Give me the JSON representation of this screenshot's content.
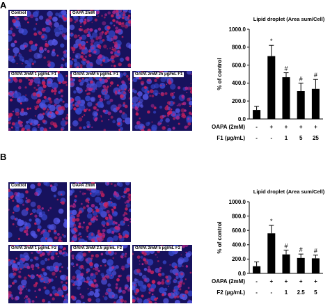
{
  "panels": [
    {
      "letter": "A",
      "images": [
        {
          "label": "Control",
          "red": 0.12
        },
        {
          "label": "OAPA 2mM",
          "red": 0.55
        },
        {
          "label": "OAPA 2mM 1 µg/mL F1",
          "red": 0.42
        },
        {
          "label": "OAPA 2mM 5 µg/mL F1",
          "red": 0.35
        },
        {
          "label": "OAPA 2mM 25 µg/mL F1",
          "red": 0.32
        }
      ],
      "chart_data": {
        "type": "bar",
        "title": "Lipid droplet (Area sum/Cell)",
        "ylabel": "% of control",
        "ylim": [
          0,
          1000
        ],
        "yticks": [
          "0.0",
          "200.0",
          "400.0",
          "600.0",
          "800.0",
          "1000.0"
        ],
        "values": [
          100,
          700,
          465,
          310,
          335
        ],
        "errors": [
          40,
          120,
          50,
          90,
          105
        ],
        "significance": [
          "",
          "*",
          "#",
          "#",
          "#"
        ],
        "rows": [
          {
            "label": "OAPA (2mM)",
            "values": [
              "-",
              "+",
              "+",
              "+",
              "+"
            ]
          },
          {
            "label": "F1 (µg/mL)",
            "values": [
              "-",
              "-",
              "1",
              "5",
              "25"
            ]
          }
        ]
      }
    },
    {
      "letter": "B",
      "images": [
        {
          "label": "Control",
          "red": 0.12
        },
        {
          "label": "OAPA 2mM",
          "red": 0.55
        },
        {
          "label": "OAPA 2mM 1 µg/mL F2",
          "red": 0.38
        },
        {
          "label": "OAPA 2mM 2.5 µg/mL F2",
          "red": 0.3
        },
        {
          "label": "OAPA 2mM 5 µg/mL F2",
          "red": 0.28
        }
      ],
      "chart_data": {
        "type": "bar",
        "title": "Lipid droplet (Area sum/Cell)",
        "ylabel": "% of control",
        "ylim": [
          0,
          1000
        ],
        "yticks": [
          "0.0",
          "200.0",
          "400.0",
          "600.0",
          "800.0",
          "1000.0"
        ],
        "values": [
          100,
          560,
          265,
          215,
          210
        ],
        "errors": [
          60,
          110,
          60,
          55,
          45
        ],
        "significance": [
          "",
          "*",
          "#",
          "#",
          "#"
        ],
        "rows": [
          {
            "label": "OAPA (2mM)",
            "values": [
              "-",
              "+",
              "+",
              "+",
              "+"
            ]
          },
          {
            "label": "F2 (µg/mL)",
            "values": [
              "-",
              "-",
              "1",
              "2.5",
              "5"
            ]
          }
        ]
      }
    }
  ]
}
